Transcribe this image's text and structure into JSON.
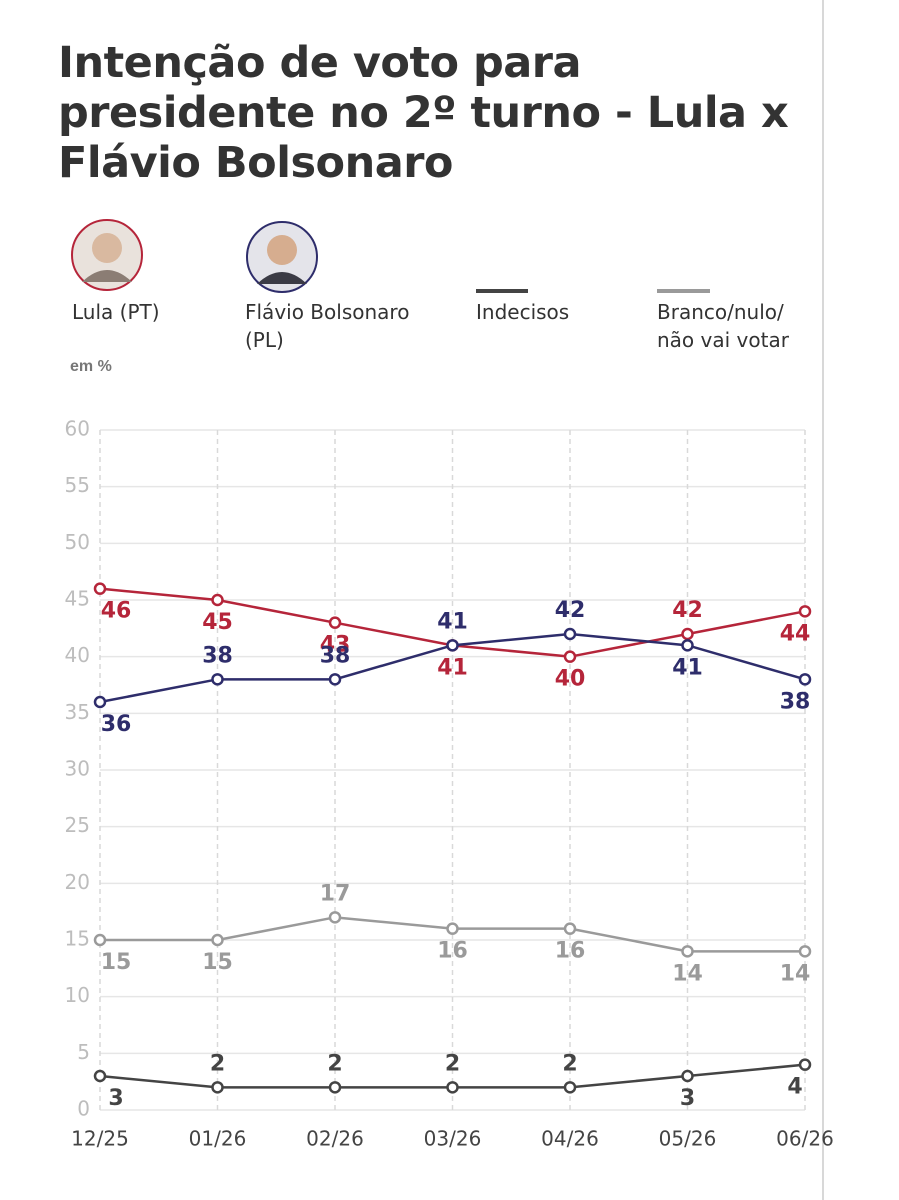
{
  "chart_data": {
    "type": "line",
    "title": "Intenção de voto para presidente no 2º turno - Lula x Flávio Bolsonaro",
    "unit_label": "em %",
    "categories": [
      "12/25",
      "01/26",
      "02/26",
      "03/26",
      "04/26",
      "05/26",
      "06/26"
    ],
    "series": [
      {
        "name": "Lula (PT)",
        "color": "#b5253a",
        "values": [
          46,
          45,
          43,
          41,
          40,
          42,
          44
        ]
      },
      {
        "name": "Flávio Bolsonaro (PL)",
        "color": "#2e2d6b",
        "values": [
          36,
          38,
          38,
          41,
          42,
          41,
          38
        ]
      },
      {
        "name": "Indecisos",
        "color": "#444444",
        "values": [
          3,
          2,
          2,
          2,
          2,
          3,
          4
        ]
      },
      {
        "name": "Branco/nulo/\nnão vai votar",
        "color": "#9a9a9a",
        "values": [
          15,
          15,
          17,
          16,
          16,
          14,
          14
        ]
      }
    ],
    "ylim": [
      0,
      60
    ],
    "yticks": [
      0,
      5,
      10,
      15,
      20,
      25,
      30,
      35,
      40,
      45,
      50,
      55,
      60
    ],
    "grid": true
  }
}
